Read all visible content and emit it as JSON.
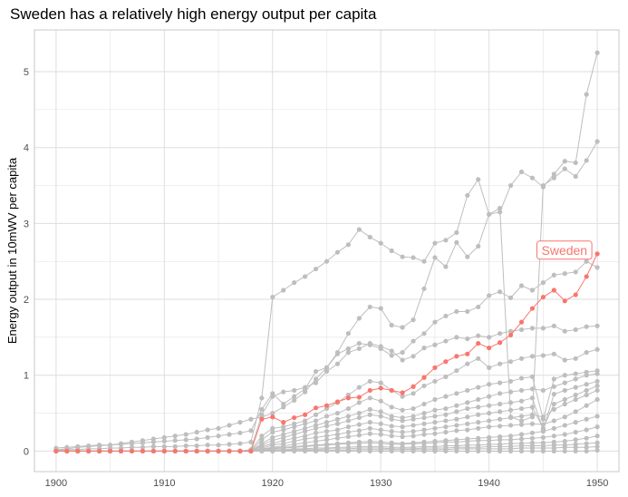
{
  "chart_data": {
    "type": "line",
    "title": "Sweden has a relatively high energy output per capita",
    "xlabel": "",
    "ylabel": "Energy output in 10mWV per capita",
    "xlim": [
      1898,
      1952
    ],
    "ylim": [
      -0.27,
      5.55
    ],
    "x_ticks": [
      1900,
      1910,
      1920,
      1930,
      1940,
      1950
    ],
    "y_ticks": [
      0,
      1,
      2,
      3,
      4,
      5
    ],
    "grid": true,
    "colors": {
      "highlight": "#F8766D",
      "other": "#BEBEBE",
      "grid": "#DEDEDE"
    },
    "x": [
      1900,
      1901,
      1902,
      1903,
      1904,
      1905,
      1906,
      1907,
      1908,
      1909,
      1910,
      1911,
      1912,
      1913,
      1914,
      1915,
      1916,
      1917,
      1918,
      1919,
      1920,
      1921,
      1922,
      1923,
      1924,
      1925,
      1926,
      1927,
      1928,
      1929,
      1930,
      1931,
      1932,
      1933,
      1934,
      1935,
      1936,
      1937,
      1938,
      1939,
      1940,
      1941,
      1942,
      1943,
      1944,
      1945,
      1946,
      1947,
      1948,
      1949,
      1950
    ],
    "highlight": {
      "name": "Sweden",
      "values": [
        0,
        0,
        0,
        0,
        0,
        0,
        0,
        0,
        0,
        0,
        0,
        0,
        0,
        0,
        0,
        0,
        0,
        0,
        0,
        0.42,
        0.45,
        0.38,
        0.44,
        0.48,
        0.57,
        0.6,
        0.65,
        0.7,
        0.71,
        0.8,
        0.83,
        0.8,
        0.77,
        0.85,
        0.97,
        1.1,
        1.18,
        1.25,
        1.28,
        1.42,
        1.36,
        1.43,
        1.53,
        1.7,
        1.88,
        2.03,
        2.12,
        1.98,
        2.06,
        2.3,
        2.6
      ]
    },
    "series": [
      {
        "values": [
          0.01,
          0.02,
          0.02,
          0.03,
          0.03,
          0.04,
          0.04,
          0.05,
          0.05,
          0.06,
          0.06,
          0.06,
          0.07,
          0.07,
          0.08,
          0.08,
          0.09,
          0.1,
          0.12,
          0.7,
          2.03,
          2.12,
          2.22,
          2.3,
          2.4,
          2.5,
          2.62,
          2.72,
          2.92,
          2.82,
          2.74,
          2.64,
          2.56,
          2.55,
          2.5,
          2.74,
          2.78,
          2.88,
          3.37,
          3.58,
          3.12,
          3.15,
          3.5,
          3.68,
          3.6,
          3.48,
          3.65,
          3.82,
          3.8,
          4.7,
          5.25
        ]
      },
      {
        "values": [
          0.02,
          0.03,
          0.05,
          0.06,
          0.07,
          0.08,
          0.1,
          0.12,
          0.14,
          0.16,
          0.18,
          0.2,
          0.22,
          0.25,
          0.28,
          0.3,
          0.34,
          0.38,
          0.42,
          0.45,
          0.5,
          0.58,
          0.67,
          0.78,
          0.95,
          1.1,
          1.3,
          1.55,
          1.75,
          1.9,
          1.88,
          1.66,
          1.63,
          1.73,
          2.14,
          2.55,
          2.43,
          2.75,
          2.56,
          2.7,
          3.12,
          3.2,
          0.45,
          0.4,
          0.45,
          3.5,
          3.6,
          3.72,
          3.62,
          3.83,
          4.08
        ]
      },
      {
        "values": [
          0.04,
          0.05,
          0.06,
          0.07,
          0.08,
          0.08,
          0.09,
          0.1,
          0.11,
          0.12,
          0.13,
          0.14,
          0.15,
          0.16,
          0.18,
          0.2,
          0.22,
          0.24,
          0.27,
          0.55,
          0.76,
          0.62,
          0.72,
          0.82,
          1.05,
          1.1,
          1.28,
          1.35,
          1.42,
          1.4,
          1.35,
          1.26,
          1.3,
          1.45,
          1.55,
          1.7,
          1.78,
          1.84,
          1.84,
          1.9,
          2.05,
          2.1,
          2.02,
          2.18,
          2.12,
          2.22,
          2.32,
          2.34,
          2.36,
          2.5,
          2.42
        ]
      },
      {
        "values": [
          0,
          0,
          0,
          0,
          0,
          0,
          0,
          0,
          0,
          0,
          0,
          0,
          0,
          0,
          0,
          0,
          0,
          0,
          0.02,
          0.48,
          0.72,
          0.78,
          0.8,
          0.84,
          0.9,
          1.05,
          1.15,
          1.3,
          1.35,
          1.42,
          1.38,
          1.32,
          1.2,
          1.25,
          1.36,
          1.4,
          1.45,
          1.5,
          1.48,
          1.52,
          1.5,
          1.55,
          1.58,
          1.6,
          1.62,
          1.62,
          1.65,
          1.58,
          1.6,
          1.64,
          1.65
        ]
      },
      {
        "values": [
          0,
          0,
          0,
          0,
          0,
          0,
          0,
          0,
          0,
          0,
          0,
          0,
          0,
          0,
          0,
          0,
          0,
          0,
          0.01,
          0.2,
          0.3,
          0.32,
          0.36,
          0.4,
          0.48,
          0.56,
          0.64,
          0.74,
          0.84,
          0.92,
          0.9,
          0.8,
          0.72,
          0.76,
          0.86,
          0.92,
          0.98,
          1.06,
          1.15,
          1.22,
          1.1,
          1.15,
          1.18,
          1.22,
          1.25,
          1.26,
          1.28,
          1.2,
          1.22,
          1.3,
          1.34
        ]
      },
      {
        "values": [
          0,
          0,
          0,
          0,
          0,
          0,
          0,
          0,
          0,
          0,
          0,
          0,
          0,
          0,
          0,
          0,
          0,
          0,
          0,
          0.15,
          0.25,
          0.28,
          0.32,
          0.36,
          0.4,
          0.46,
          0.5,
          0.56,
          0.64,
          0.7,
          0.66,
          0.58,
          0.54,
          0.56,
          0.62,
          0.68,
          0.72,
          0.76,
          0.8,
          0.84,
          0.88,
          0.9,
          0.92,
          0.96,
          0.98,
          0.42,
          0.95,
          1,
          1.02,
          1.04,
          1.06
        ]
      },
      {
        "values": [
          0,
          0,
          0,
          0,
          0,
          0,
          0,
          0,
          0,
          0,
          0,
          0,
          0,
          0,
          0,
          0,
          0,
          0,
          0,
          0.1,
          0.18,
          0.22,
          0.26,
          0.3,
          0.34,
          0.38,
          0.42,
          0.46,
          0.5,
          0.55,
          0.52,
          0.46,
          0.44,
          0.46,
          0.5,
          0.54,
          0.56,
          0.6,
          0.64,
          0.68,
          0.72,
          0.76,
          0.78,
          0.8,
          0.82,
          0.8,
          0.85,
          0.9,
          0.95,
          1,
          1.02
        ]
      },
      {
        "values": [
          0,
          0,
          0,
          0,
          0,
          0,
          0,
          0,
          0,
          0,
          0,
          0,
          0,
          0,
          0,
          0,
          0,
          0,
          0,
          0.08,
          0.14,
          0.18,
          0.22,
          0.26,
          0.3,
          0.33,
          0.36,
          0.4,
          0.44,
          0.48,
          0.46,
          0.42,
          0.4,
          0.42,
          0.44,
          0.46,
          0.48,
          0.52,
          0.56,
          0.58,
          0.6,
          0.62,
          0.64,
          0.66,
          0.7,
          0.28,
          0.75,
          0.8,
          0.84,
          0.88,
          0.92
        ]
      },
      {
        "values": [
          0,
          0,
          0,
          0,
          0,
          0,
          0,
          0,
          0,
          0,
          0,
          0,
          0,
          0,
          0,
          0,
          0,
          0,
          0,
          0.06,
          0.1,
          0.14,
          0.17,
          0.2,
          0.24,
          0.26,
          0.28,
          0.32,
          0.35,
          0.38,
          0.36,
          0.33,
          0.32,
          0.34,
          0.36,
          0.38,
          0.4,
          0.42,
          0.45,
          0.48,
          0.5,
          0.52,
          0.54,
          0.56,
          0.58,
          0.3,
          0.62,
          0.68,
          0.74,
          0.8,
          0.86
        ]
      },
      {
        "values": [
          0,
          0,
          0,
          0,
          0,
          0,
          0,
          0,
          0,
          0,
          0,
          0,
          0,
          0,
          0,
          0,
          0,
          0,
          0,
          0.04,
          0.08,
          0.1,
          0.13,
          0.16,
          0.18,
          0.2,
          0.22,
          0.25,
          0.27,
          0.3,
          0.28,
          0.26,
          0.25,
          0.26,
          0.28,
          0.3,
          0.32,
          0.34,
          0.36,
          0.38,
          0.4,
          0.42,
          0.44,
          0.46,
          0.48,
          0.45,
          0.55,
          0.62,
          0.68,
          0.74,
          0.8
        ]
      },
      {
        "values": [
          0,
          0,
          0,
          0,
          0,
          0,
          0,
          0,
          0,
          0,
          0,
          0,
          0,
          0,
          0,
          0,
          0,
          0,
          0,
          0.03,
          0.05,
          0.07,
          0.09,
          0.11,
          0.13,
          0.15,
          0.17,
          0.19,
          0.21,
          0.23,
          0.22,
          0.2,
          0.19,
          0.2,
          0.22,
          0.23,
          0.25,
          0.27,
          0.28,
          0.3,
          0.32,
          0.33,
          0.34,
          0.35,
          0.36,
          0.35,
          0.4,
          0.45,
          0.52,
          0.6,
          0.68
        ]
      },
      {
        "values": [
          0,
          0,
          0,
          0,
          0,
          0,
          0,
          0,
          0,
          0,
          0,
          0,
          0,
          0,
          0,
          0,
          0,
          0,
          0,
          0.02,
          0.04,
          0.05,
          0.06,
          0.07,
          0.08,
          0.09,
          0.1,
          0.11,
          0.12,
          0.13,
          0.12,
          0.11,
          0.1,
          0.11,
          0.12,
          0.13,
          0.14,
          0.15,
          0.16,
          0.17,
          0.18,
          0.19,
          0.2,
          0.22,
          0.24,
          0.26,
          0.3,
          0.34,
          0.38,
          0.42,
          0.46
        ]
      },
      {
        "values": [
          0,
          0,
          0,
          0,
          0,
          0,
          0,
          0,
          0,
          0,
          0,
          0,
          0,
          0,
          0,
          0,
          0,
          0,
          0,
          0.02,
          0.03,
          0.04,
          0.05,
          0.06,
          0.07,
          0.08,
          0.09,
          0.1,
          0.1,
          0.11,
          0.1,
          0.09,
          0.09,
          0.1,
          0.1,
          0.11,
          0.12,
          0.12,
          0.13,
          0.14,
          0.14,
          0.15,
          0.15,
          0.16,
          0.17,
          0.18,
          0.2,
          0.22,
          0.25,
          0.28,
          0.32
        ]
      },
      {
        "values": [
          0,
          0,
          0,
          0,
          0,
          0,
          0,
          0,
          0,
          0,
          0,
          0,
          0,
          0,
          0,
          0,
          0,
          0,
          0,
          0.01,
          0.02,
          0.02,
          0.03,
          0.03,
          0.04,
          0.04,
          0.05,
          0.05,
          0.06,
          0.06,
          0.06,
          0.05,
          0.05,
          0.05,
          0.06,
          0.06,
          0.07,
          0.07,
          0.08,
          0.08,
          0.09,
          0.09,
          0.1,
          0.1,
          0.11,
          0.11,
          0.12,
          0.13,
          0.15,
          0.17,
          0.2
        ]
      },
      {
        "values": [
          0,
          0,
          0,
          0,
          0,
          0,
          0,
          0,
          0,
          0,
          0,
          0,
          0,
          0,
          0,
          0,
          0,
          0,
          0,
          0.01,
          0.01,
          0.01,
          0.02,
          0.02,
          0.02,
          0.03,
          0.03,
          0.03,
          0.04,
          0.04,
          0.04,
          0.03,
          0.03,
          0.03,
          0.04,
          0.04,
          0.04,
          0.05,
          0.05,
          0.05,
          0.06,
          0.06,
          0.06,
          0.07,
          0.07,
          0.07,
          0.08,
          0.08,
          0.09,
          0.1,
          0.11
        ]
      },
      {
        "values": [
          0,
          0,
          0,
          0,
          0,
          0,
          0,
          0,
          0,
          0,
          0,
          0,
          0,
          0,
          0,
          0,
          0,
          0,
          0,
          0,
          0,
          0,
          0.01,
          0.01,
          0.01,
          0.01,
          0.01,
          0.01,
          0.02,
          0.02,
          0.02,
          0.02,
          0.02,
          0.02,
          0.02,
          0.02,
          0.02,
          0.03,
          0.03,
          0.03,
          0.03,
          0.03,
          0.03,
          0.04,
          0.04,
          0.04,
          0.04,
          0.05,
          0.05,
          0.05,
          0.06
        ]
      },
      {
        "values": [
          0,
          0,
          0,
          0,
          0,
          0,
          0,
          0,
          0,
          0,
          0,
          0,
          0,
          0,
          0,
          0,
          0,
          0,
          0,
          0,
          0,
          0,
          0,
          0,
          0,
          0,
          0,
          0,
          0,
          0,
          0,
          0,
          0,
          0,
          0,
          0,
          0,
          0,
          0,
          0,
          0,
          0,
          0,
          0,
          0,
          0,
          0,
          0,
          0,
          0,
          0.01
        ]
      }
    ]
  }
}
